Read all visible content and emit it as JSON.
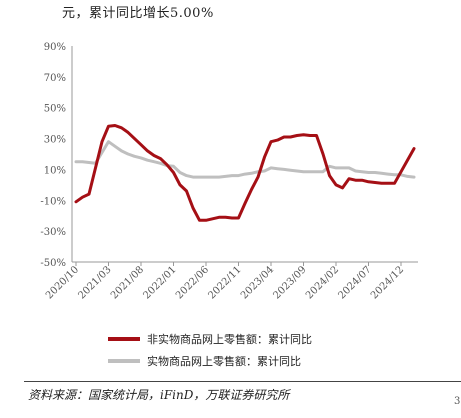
{
  "top_text": "元，累计同比增长5.00%",
  "source": "资料来源：国家统计局，iFinD，万联证券研究所",
  "page_mark": "3",
  "colors": {
    "series1": "#A50F15",
    "series2": "#BFBFBF",
    "axis": "#999999"
  },
  "chart_data": {
    "type": "line",
    "title": "",
    "xlabel": "",
    "ylabel": "",
    "ylim": [
      -50,
      90
    ],
    "yticks": [
      90,
      70,
      50,
      30,
      10,
      -10,
      -30,
      -50
    ],
    "x_tick_labels": [
      "2020/10",
      "2021/03",
      "2021/08",
      "2022/01",
      "2022/06",
      "2022/11",
      "2023/04",
      "2023/09",
      "2024/02",
      "2024/07",
      "2024/12"
    ],
    "x_tick_index": [
      0,
      5,
      10,
      15,
      20,
      25,
      30,
      35,
      40,
      45,
      50
    ],
    "categories": [
      "2020/10",
      "2020/11",
      "2020/12",
      "2021/01",
      "2021/02",
      "2021/03",
      "2021/04",
      "2021/05",
      "2021/06",
      "2021/07",
      "2021/08",
      "2021/09",
      "2021/10",
      "2021/11",
      "2021/12",
      "2022/01",
      "2022/02",
      "2022/03",
      "2022/04",
      "2022/05",
      "2022/06",
      "2022/07",
      "2022/08",
      "2022/09",
      "2022/10",
      "2022/11",
      "2022/12",
      "2023/01",
      "2023/02",
      "2023/03",
      "2023/04",
      "2023/05",
      "2023/06",
      "2023/07",
      "2023/08",
      "2023/09",
      "2023/10",
      "2023/11",
      "2023/12",
      "2024/01",
      "2024/02",
      "2024/03",
      "2024/04",
      "2024/05",
      "2024/06",
      "2024/07",
      "2024/08",
      "2024/09",
      "2024/10",
      "2024/11",
      "2024/12",
      "2025/01",
      "2025/02"
    ],
    "series": [
      {
        "name": "非实物商品网上零售额：累计同比",
        "values": [
          -11,
          -8,
          -6,
          null,
          28,
          38,
          38.5,
          37,
          34,
          30,
          26,
          22,
          19,
          17,
          13,
          8,
          0,
          -4,
          -15,
          -23,
          -23,
          -22,
          -21,
          -21,
          -21.5,
          -21.5,
          -12,
          -3,
          5,
          18,
          28,
          29,
          31,
          31,
          32,
          32.5,
          32,
          32,
          20,
          6,
          0,
          -2,
          4,
          3,
          3,
          2,
          1.5,
          1,
          1,
          1,
          null,
          null,
          23.5
        ]
      },
      {
        "name": "实物商品网上零售额：累计同比",
        "values": [
          15,
          15,
          14.5,
          14,
          21,
          28,
          25,
          22,
          20,
          18.5,
          17.5,
          16,
          15,
          14,
          12.5,
          12,
          8,
          6,
          5,
          5,
          5,
          5,
          5,
          5.5,
          6,
          6,
          7,
          7.5,
          8.5,
          9,
          11,
          10.5,
          10,
          9.5,
          9,
          8.5,
          8.5,
          8.5,
          8.5,
          12,
          11,
          11,
          11,
          9,
          8.5,
          8,
          8,
          7.5,
          7,
          6.5,
          6.5,
          5.5,
          5
        ]
      }
    ],
    "legend_position": "bottom",
    "grid": false
  }
}
